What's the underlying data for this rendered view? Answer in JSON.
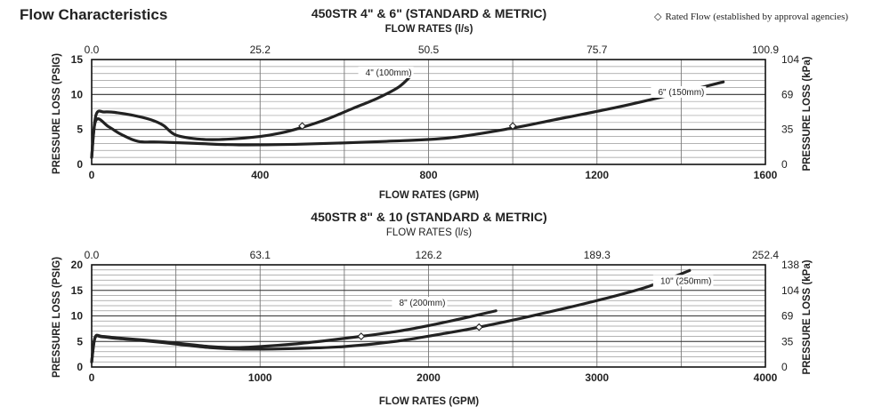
{
  "header": {
    "title": "Flow Characteristics",
    "legend_symbol": "◇",
    "legend_text": "Rated Flow (established by approval agencies)"
  },
  "chart_data": [
    {
      "type": "line",
      "title": "450STR 4\" & 6\" (STANDARD & METRIC)",
      "xlabel": "FLOW RATES (GPM)",
      "x2label": "FLOW RATES (l/s)",
      "ylabel": "PRESSURE LOSS (PSIG)",
      "y2label": "PRESSURE LOSS (kPa)",
      "xlim": [
        0,
        1600
      ],
      "ylim": [
        0,
        15
      ],
      "x_ticks": [
        "0",
        "400",
        "800",
        "1200",
        "1600"
      ],
      "y_ticks": [
        "0",
        "5",
        "10",
        "15"
      ],
      "x2_ticks": [
        "0.0",
        "25.2",
        "50.5",
        "75.7",
        "100.9"
      ],
      "y2_ticks": [
        "0",
        "35",
        "69",
        "104"
      ],
      "x_minor_step": 200,
      "y_minor_step": 1,
      "grid": true,
      "series": [
        {
          "name": "4\" (100mm)",
          "x": [
            0,
            10,
            30,
            60,
            100,
            140,
            170,
            200,
            260,
            320,
            400,
            450,
            500,
            560,
            620,
            680,
            730,
            760
          ],
          "y": [
            1.0,
            7.0,
            7.5,
            7.4,
            7.0,
            6.4,
            5.6,
            4.2,
            3.6,
            3.6,
            4.0,
            4.5,
            5.3,
            6.5,
            8.0,
            9.5,
            11.1,
            12.8
          ],
          "rated": [
            500,
            5.5
          ],
          "label_at": [
            760,
            13.1
          ]
        },
        {
          "name": "6\" (150mm)",
          "x": [
            0,
            10,
            40,
            70,
            110,
            160,
            250,
            350,
            500,
            700,
            850,
            1000,
            1100,
            1250,
            1400,
            1500
          ],
          "y": [
            1.0,
            6.3,
            5.4,
            4.3,
            3.3,
            3.2,
            3.0,
            2.8,
            2.9,
            3.3,
            3.8,
            5.2,
            6.4,
            8.2,
            10.3,
            11.8
          ],
          "rated": [
            1000,
            5.5
          ],
          "label_at": [
            1455,
            10.3
          ]
        }
      ]
    },
    {
      "type": "line",
      "title": "450STR 8\" & 10 (STANDARD & METRIC)",
      "xlabel": "FLOW RATES (GPM)",
      "x2label": "FLOW RATES (l/s)",
      "ylabel": "PRESSURE LOSS (PSIG)",
      "y2label": "PRESSURE LOSS (kPa)",
      "xlim": [
        0,
        4000
      ],
      "ylim": [
        0,
        20
      ],
      "x_ticks": [
        "0",
        "1000",
        "2000",
        "3000",
        "4000"
      ],
      "y_ticks": [
        "0",
        "5",
        "10",
        "15",
        "20"
      ],
      "x2_ticks": [
        "0.0",
        "63.1",
        "126.2",
        "189.3",
        "252.4"
      ],
      "y2_ticks": [
        "0",
        "35",
        "69",
        "104",
        "138"
      ],
      "x_minor_step": 500,
      "y_minor_step": 1,
      "grid": true,
      "series": [
        {
          "name": "8\" (200mm)",
          "x": [
            0,
            20,
            60,
            150,
            300,
            500,
            700,
            850,
            1000,
            1200,
            1400,
            1600,
            1800,
            2000,
            2200,
            2400
          ],
          "y": [
            1.0,
            5.8,
            6.0,
            5.7,
            5.3,
            4.7,
            4.0,
            3.8,
            4.0,
            4.5,
            5.2,
            6.0,
            6.9,
            8.1,
            9.5,
            11.0
          ],
          "rated": [
            1600,
            6.0
          ],
          "label_at": [
            2100,
            12.5
          ]
        },
        {
          "name": "10\" (250mm)",
          "x": [
            0,
            20,
            60,
            150,
            300,
            500,
            700,
            900,
            1200,
            1500,
            1800,
            2100,
            2300,
            2600,
            3000,
            3300,
            3550
          ],
          "y": [
            1.0,
            5.7,
            5.9,
            5.6,
            5.2,
            4.5,
            3.8,
            3.5,
            3.6,
            4.0,
            5.0,
            6.6,
            7.8,
            9.9,
            13.0,
            15.7,
            18.9
          ],
          "rated": [
            2300,
            7.8
          ],
          "label_at": [
            3680,
            16.8
          ]
        }
      ]
    }
  ]
}
